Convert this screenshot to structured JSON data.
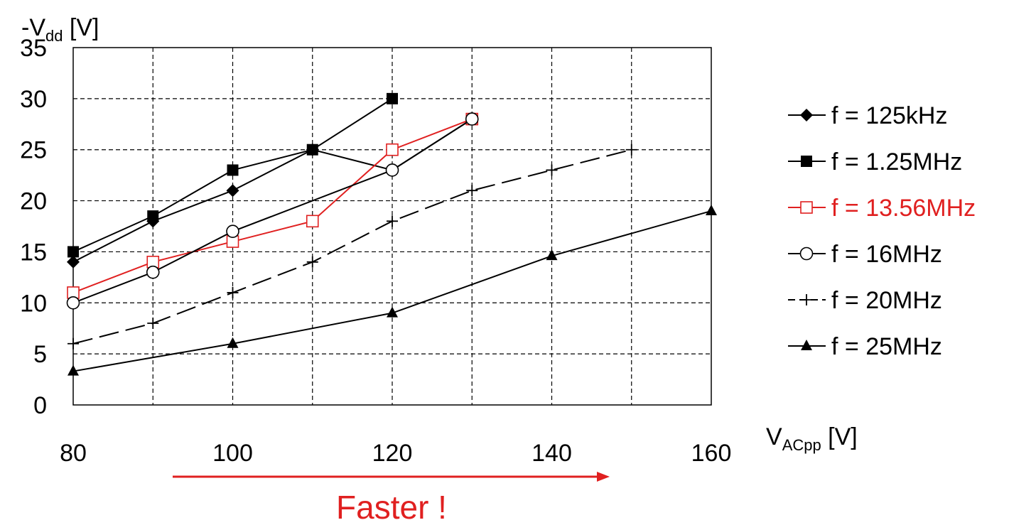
{
  "chart_data": {
    "type": "line",
    "ylabel": {
      "prefix": "-V",
      "sub": "dd",
      "unit": " [V]"
    },
    "xlabel": {
      "prefix": "V",
      "sub": "ACpp",
      "unit": " [V]"
    },
    "xlim": [
      80,
      160
    ],
    "ylim": [
      0,
      35
    ],
    "x_ticks": [
      80,
      100,
      120,
      140,
      160
    ],
    "y_ticks": [
      0,
      5,
      10,
      15,
      20,
      25,
      30,
      35
    ],
    "x_grid": [
      80,
      90,
      100,
      110,
      120,
      130,
      140,
      150,
      160
    ],
    "grid": true,
    "legend_position": "right",
    "series": [
      {
        "name": "f = 125kHz",
        "color": "#000000",
        "marker": "diamond",
        "dash": "",
        "x": [
          80,
          90,
          100,
          110,
          120,
          130
        ],
        "y": [
          14,
          18,
          21,
          25,
          23,
          28
        ]
      },
      {
        "name": "f = 1.25MHz",
        "color": "#000000",
        "marker": "square-filled",
        "dash": "",
        "x": [
          80,
          90,
          100,
          110,
          120
        ],
        "y": [
          15,
          18.5,
          23,
          25,
          30
        ]
      },
      {
        "name": "f = 13.56MHz",
        "color": "#e02020",
        "marker": "square-open",
        "dash": "",
        "x": [
          80,
          90,
          100,
          110,
          120,
          130
        ],
        "y": [
          11,
          14,
          16,
          18,
          25,
          28
        ]
      },
      {
        "name": "f = 16MHz",
        "color": "#000000",
        "marker": "circle-open",
        "dash": "",
        "x": [
          80,
          90,
          100,
          120,
          130
        ],
        "y": [
          10,
          13,
          17,
          23,
          28
        ]
      },
      {
        "name": "f = 20MHz",
        "color": "#000000",
        "marker": "plus",
        "dash": "28 10",
        "x": [
          80,
          90,
          100,
          110,
          120,
          130,
          140,
          150
        ],
        "y": [
          6,
          8,
          11,
          14,
          18,
          21,
          23,
          25
        ]
      },
      {
        "name": "f = 25MHz",
        "color": "#000000",
        "marker": "triangle",
        "dash": "",
        "x": [
          80,
          100,
          120,
          140,
          160
        ],
        "y": [
          3.3,
          6,
          9,
          14.6,
          19
        ]
      }
    ],
    "annotation": {
      "text": "Faster !",
      "color": "#e02020"
    }
  }
}
